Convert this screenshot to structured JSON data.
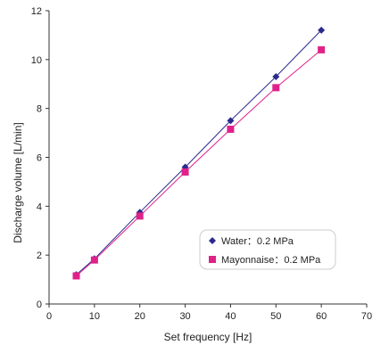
{
  "chart_data": {
    "type": "scatter",
    "xlabel": "Set frequency [Hz]",
    "ylabel": "Discharge volume [L/min]",
    "xlim": [
      0,
      70
    ],
    "ylim": [
      0,
      12
    ],
    "x_ticks": [
      0,
      10,
      20,
      30,
      40,
      50,
      60,
      70
    ],
    "y_ticks": [
      0,
      2,
      4,
      6,
      8,
      10,
      12
    ],
    "x_tick_labels": [
      "0",
      "10",
      "20",
      "30",
      "40",
      "50",
      "60",
      "70"
    ],
    "y_tick_labels": [
      "0",
      "2",
      "4",
      "6",
      "8",
      "10",
      "12"
    ],
    "grid": false,
    "legend_position": "bottom-right",
    "series": [
      {
        "name": "Water：0.2 MPa",
        "marker": "diamond",
        "color": "#2b2a8c",
        "x": [
          6,
          10,
          20,
          30,
          40,
          50,
          60
        ],
        "y": [
          1.2,
          1.85,
          3.75,
          5.6,
          7.5,
          9.3,
          11.2
        ]
      },
      {
        "name": "Mayonnaise：0.2 MPa",
        "marker": "square",
        "color": "#e0218a",
        "x": [
          6,
          10,
          20,
          30,
          40,
          50,
          60
        ],
        "y": [
          1.15,
          1.8,
          3.6,
          5.4,
          7.15,
          8.85,
          10.4
        ]
      }
    ]
  }
}
